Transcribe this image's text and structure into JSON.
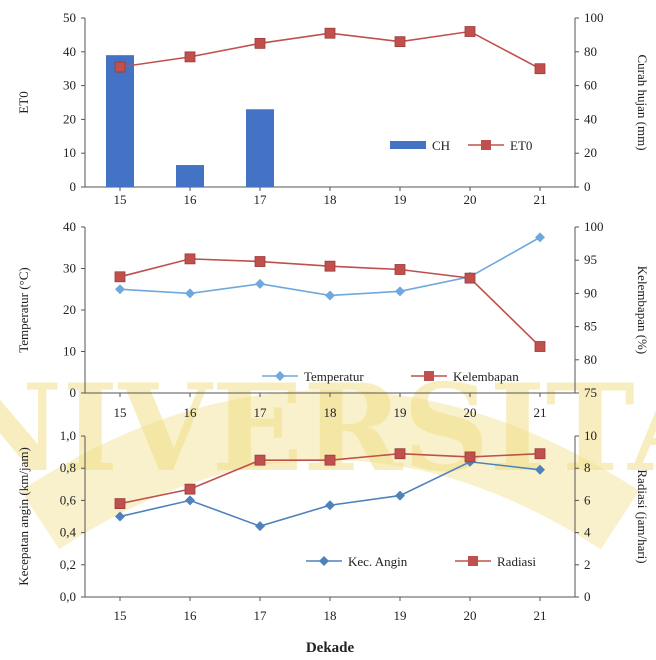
{
  "watermark": {
    "text": "UNIVERSITAS",
    "color": "#f1e089"
  },
  "chart_data": [
    {
      "type": "bar-line",
      "categories": [
        "15",
        "16",
        "17",
        "18",
        "19",
        "20",
        "21"
      ],
      "y_left": {
        "label": "ET0",
        "min": 0,
        "max": 50,
        "ticks": [
          "0",
          "10",
          "20",
          "30",
          "40",
          "50"
        ]
      },
      "y_right": {
        "label": "Curah hujan (mm)",
        "min": 0,
        "max": 100,
        "ticks": [
          "0",
          "20",
          "40",
          "60",
          "80",
          "100"
        ]
      },
      "series": [
        {
          "name": "CH",
          "kind": "bar",
          "axis": "left",
          "color": "#4472c4",
          "values": [
            39,
            6.5,
            23,
            0,
            0,
            0,
            0
          ]
        },
        {
          "name": "ET0",
          "kind": "line",
          "axis": "right",
          "color": "#c0504d",
          "values": [
            71,
            77,
            85,
            91,
            86,
            92,
            70
          ]
        }
      ],
      "legend_position": "bottom-right",
      "grid": false
    },
    {
      "type": "line",
      "categories": [
        "15",
        "16",
        "17",
        "18",
        "19",
        "20",
        "21"
      ],
      "y_left": {
        "label": "Temperatur (°C)",
        "min": 0,
        "max": 40,
        "ticks": [
          "0",
          "10",
          "20",
          "30",
          "40"
        ]
      },
      "y_right": {
        "label": "Kelembapan (%)",
        "min": 75,
        "max": 100,
        "ticks": [
          "75",
          "80",
          "85",
          "90",
          "95",
          "100"
        ]
      },
      "series": [
        {
          "name": "Temperatur",
          "kind": "line",
          "axis": "left",
          "color": "#6fa8dc",
          "values": [
            25,
            24,
            26.3,
            23.5,
            24.5,
            28,
            37.5
          ]
        },
        {
          "name": "Kelembapan",
          "kind": "line",
          "axis": "right",
          "color": "#c0504d",
          "values": [
            92.5,
            95.2,
            94.8,
            94.1,
            93.6,
            92.3,
            82
          ]
        }
      ],
      "legend_position": "bottom-right",
      "grid": false
    },
    {
      "type": "line",
      "categories": [
        "15",
        "16",
        "17",
        "18",
        "19",
        "20",
        "21"
      ],
      "y_left": {
        "label": "Kecepatan angin (km/jam)",
        "min": 0,
        "max": 1,
        "ticks": [
          "0,0",
          "0,2",
          "0,4",
          "0,6",
          "0,8",
          "1,0"
        ]
      },
      "y_right": {
        "label": "Radiasi (jam/hari)",
        "min": 0,
        "max": 10,
        "ticks": [
          "0",
          "2",
          "4",
          "6",
          "8",
          "10"
        ]
      },
      "series": [
        {
          "name": "Kec. Angin",
          "kind": "line",
          "axis": "left",
          "color": "#4f81bd",
          "values": [
            0.5,
            0.6,
            0.44,
            0.57,
            0.63,
            0.84,
            0.79
          ]
        },
        {
          "name": "Radiasi",
          "kind": "line",
          "axis": "right",
          "color": "#c0504d",
          "values": [
            5.8,
            6.7,
            8.5,
            8.5,
            8.9,
            8.7,
            8.9
          ]
        }
      ],
      "xlabel": "Dekade",
      "legend_position": "bottom-right",
      "grid": false
    }
  ]
}
